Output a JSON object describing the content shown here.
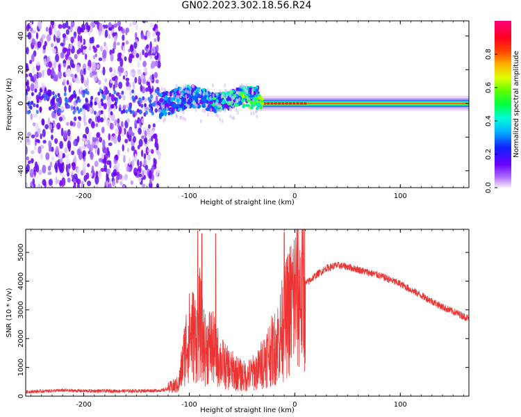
{
  "title": "GN02.2023.302.18.56.R24",
  "colors": {
    "snr_line": "#ee3333",
    "spectrogram_base": "#7a00ff",
    "frame": "#000000"
  },
  "chart_data": [
    {
      "type": "heatmap",
      "xlabel": "Height of straight line (km)",
      "ylabel": "Frequency (Hz)",
      "xlim": [
        -255,
        165
      ],
      "ylim": [
        -50,
        49
      ],
      "xticks": [
        -200,
        -100,
        0,
        100
      ],
      "yticks": [
        -40,
        -20,
        0,
        20,
        40
      ],
      "xtick_labels": [
        "-200",
        "-100",
        "0",
        "100"
      ],
      "ytick_labels": [
        "-40",
        "-20",
        "0",
        "20",
        "40"
      ],
      "colorbar": {
        "label": "Normalized spectral amplitude",
        "range": [
          0.0,
          1.0
        ],
        "ticks": [
          0.0,
          0.2,
          0.4,
          0.6,
          0.8
        ],
        "tick_labels": [
          "0.0",
          "0.2",
          "0.4",
          "0.6",
          "0.8"
        ],
        "colormap": "hsv-like (purple-blue-cyan-green-yellow-orange-red-magenta)"
      },
      "regions": [
        {
          "x_range": [
            -255,
            -128
          ],
          "freq_range": [
            -50,
            49
          ],
          "amplitude": "low-to-medium, broadband noise"
        },
        {
          "x_range": [
            -128,
            -35
          ],
          "freq_center_range": [
            -3,
            8
          ],
          "amplitude": "medium, scattered"
        },
        {
          "x_range": [
            -35,
            165
          ],
          "freq_center": 0,
          "amplitude": "high, narrow carrier line"
        }
      ]
    },
    {
      "type": "line",
      "xlabel": "Height of straight line (km)",
      "ylabel": "SNR (10 * v/v)",
      "xlim": [
        -255,
        165
      ],
      "ylim": [
        0,
        5800
      ],
      "xticks": [
        -200,
        -100,
        0,
        100
      ],
      "yticks": [
        0,
        1000,
        2000,
        3000,
        4000,
        5000
      ],
      "xtick_labels": [
        "-200",
        "-100",
        "0",
        "100"
      ],
      "ytick_labels": [
        "0",
        "1000",
        "2000",
        "3000",
        "4000",
        "5000"
      ],
      "envelope": {
        "x": [
          -255,
          -220,
          -200,
          -150,
          -125,
          -110,
          -103,
          -98,
          -93,
          -90,
          -85,
          -80,
          -75,
          -70,
          -65,
          -60,
          -55,
          -50,
          -45,
          -40,
          -35,
          -30,
          -25,
          -20,
          -15,
          -10,
          -5,
          0,
          5,
          10,
          20,
          30,
          40,
          50,
          60,
          80,
          100,
          120,
          140,
          165
        ],
        "y": [
          150,
          200,
          180,
          180,
          200,
          400,
          1800,
          2200,
          2000,
          2500,
          1600,
          1800,
          1500,
          1200,
          1000,
          900,
          800,
          700,
          700,
          800,
          900,
          1200,
          1500,
          1600,
          2000,
          2500,
          3000,
          3500,
          3700,
          3900,
          4200,
          4450,
          4550,
          4500,
          4400,
          4200,
          3900,
          3500,
          3100,
          2700
        ]
      },
      "peaks": [
        {
          "x": -92,
          "y": 5750
        },
        {
          "x": -88,
          "y": 5650
        },
        {
          "x": -75,
          "y": 5650
        },
        {
          "x": -10,
          "y": 5700
        }
      ]
    }
  ]
}
